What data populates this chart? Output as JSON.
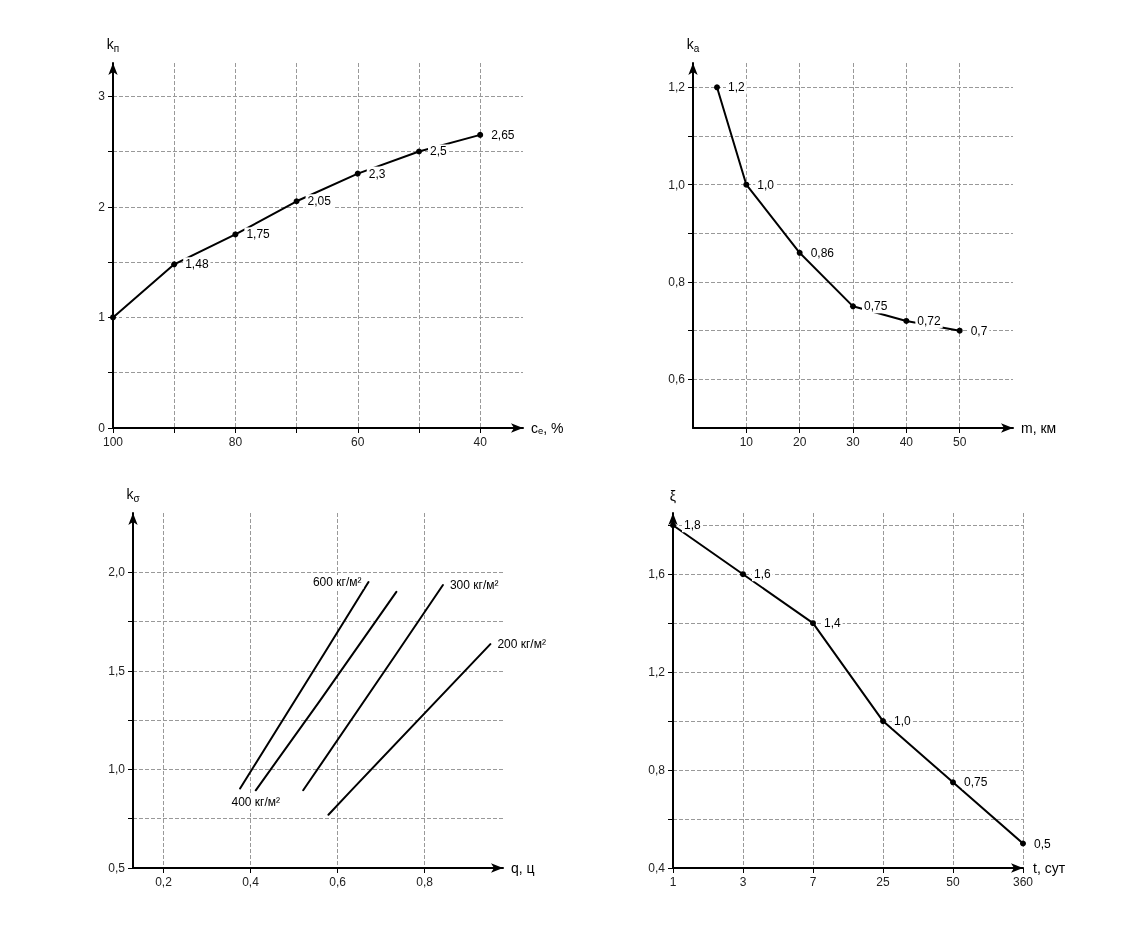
{
  "chart_data": [
    {
      "type": "line",
      "ylabel": "k$_{п}$",
      "xlabel": "cₑ, %",
      "x": [
        100,
        90,
        80,
        70,
        60,
        50,
        40
      ],
      "values": [
        1,
        1.48,
        1.75,
        2.05,
        2.3,
        2.5,
        2.65
      ],
      "value_labels": [
        null,
        "1,48",
        "1,75",
        "2,05",
        "2,3",
        "2,5",
        "2,65"
      ],
      "color": "#000000",
      "xlim": [
        100,
        33
      ],
      "xticks": [
        100,
        {
          "value": 90,
          "label": null
        },
        80,
        {
          "value": 70,
          "label": null
        },
        60,
        {
          "value": 50,
          "label": null
        },
        40
      ],
      "ylim": [
        0,
        3.3
      ],
      "yticks": [
        0,
        {
          "value": 0.5,
          "label": null
        },
        1,
        {
          "value": 1.5,
          "label": null
        },
        2,
        {
          "value": 2.5,
          "label": null
        },
        3
      ],
      "grid": true,
      "marker": "circle",
      "line_style": "solid"
    },
    {
      "type": "line",
      "ylabel": "k$_{a}$",
      "xlabel": "m, км",
      "x": [
        4.5,
        10,
        20,
        30,
        40,
        50
      ],
      "values": [
        1.2,
        1.0,
        0.86,
        0.75,
        0.72,
        0.7
      ],
      "value_labels": [
        "1,2",
        "1,0",
        "0,86",
        "0,75",
        "0,72",
        "0,7"
      ],
      "color": "#000000",
      "xlim": [
        0,
        60
      ],
      "xticks": [
        10,
        20,
        30,
        40,
        50
      ],
      "ylim": [
        0.5,
        1.25
      ],
      "yticks": [
        {
          "value": 0.6,
          "label": "0,6"
        },
        {
          "value": 0.7,
          "label": null
        },
        {
          "value": 0.8,
          "label": "0,8"
        },
        {
          "value": 0.9,
          "label": null
        },
        {
          "value": 1.0,
          "label": "1,0"
        },
        {
          "value": 1.1,
          "label": null
        },
        {
          "value": 1.2,
          "label": "1,2"
        }
      ],
      "grid": true,
      "marker": "circle",
      "line_style": "solid"
    },
    {
      "type": "line",
      "ylabel": "k$_{σ}$",
      "xlabel": "q, ц",
      "series": [
        {
          "name": "600 кг/м²",
          "color": "#000000",
          "x": [
            0.376,
            0.57,
            0.671
          ],
          "values": [
            0.903,
            1.59,
            1.95
          ]
        },
        {
          "name": "400 кг/м²",
          "color": "#000000",
          "x": [
            0.412,
            0.56,
            0.735
          ],
          "values": [
            0.894,
            1.35,
            1.9
          ]
        },
        {
          "name": "300 кг/м²",
          "color": "#000000",
          "x": [
            0.521,
            0.73,
            0.842
          ],
          "values": [
            0.894,
            1.57,
            1.935
          ]
        },
        {
          "name": "200 кг/м²",
          "color": "#000000",
          "x": [
            0.579,
            0.63,
            0.951
          ],
          "values": [
            0.77,
            0.89,
            1.635
          ]
        }
      ],
      "xlim": [
        0.13,
        0.98
      ],
      "xticks": [
        {
          "value": 0.2,
          "label": "0,2"
        },
        {
          "value": 0.4,
          "label": "0,4"
        },
        {
          "value": 0.6,
          "label": "0,6"
        },
        {
          "value": 0.8,
          "label": "0,8"
        }
      ],
      "ylim": [
        0.5,
        2.3
      ],
      "yticks": [
        {
          "value": 0.5,
          "label": "0,5"
        },
        {
          "value": 0.75,
          "label": null
        },
        {
          "value": 1.0,
          "label": "1,0"
        },
        {
          "value": 1.25,
          "label": null
        },
        {
          "value": 1.5,
          "label": "1,5"
        },
        {
          "value": 1.75,
          "label": null
        },
        {
          "value": 2.0,
          "label": "2,0"
        }
      ],
      "grid": true,
      "line_style": "solid"
    },
    {
      "type": "line",
      "ylabel": "ξ",
      "xlabel": "t, сут",
      "categories": [
        "1",
        "3",
        "7",
        "25",
        "50",
        "360"
      ],
      "values": [
        1.8,
        1.6,
        1.4,
        1.0,
        0.75,
        0.5
      ],
      "value_labels": [
        "1,8",
        "1,6",
        "1,4",
        "1,0",
        "0,75",
        "0,5"
      ],
      "color": "#000000",
      "ylim": [
        0.4,
        1.85
      ],
      "yticks": [
        {
          "value": 0.4,
          "label": "0,4"
        },
        {
          "value": 0.6,
          "label": null
        },
        {
          "value": 0.8,
          "label": "0,8"
        },
        {
          "value": 1.0,
          "label": null
        },
        {
          "value": 1.2,
          "label": "1,2"
        },
        {
          "value": 1.4,
          "label": null
        },
        {
          "value": 1.6,
          "label": "1,6"
        },
        {
          "value": 1.8,
          "label": null
        }
      ],
      "grid": true,
      "marker": "circle",
      "line_style": "solid"
    }
  ]
}
